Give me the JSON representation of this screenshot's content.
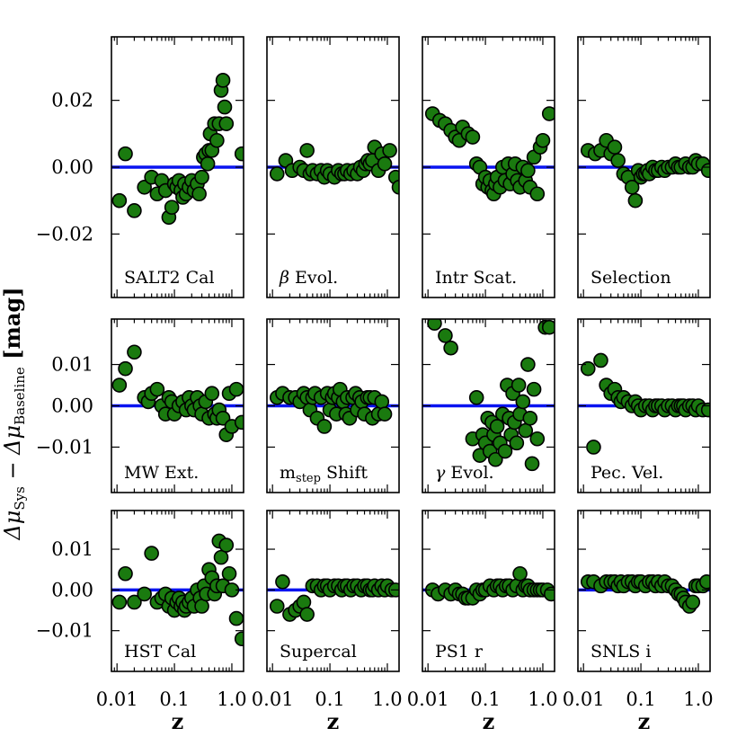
{
  "chart_data": {
    "type": "scatter",
    "ylabel": "Δμ_Sys − Δμ_Baseline [mag]",
    "ylabel_parts": {
      "base": "Δμ",
      "sub1": "Sys",
      "minus": " − Δμ",
      "sub2": "Baseline",
      "unit": " [mag]"
    },
    "xlabel": "z",
    "x_scale": "log",
    "xlim": [
      0.008,
      1.6
    ],
    "x_ticks": [
      {
        "value": 0.01,
        "label": "0.01"
      },
      {
        "value": 0.1,
        "label": "0.1"
      },
      {
        "value": 1.0,
        "label": "1.0"
      }
    ],
    "baseline_value": 0.0,
    "rows": [
      {
        "ylim": [
          -0.039,
          0.039
        ],
        "y_ticks": [
          {
            "value": 0.02,
            "label": "0.02"
          },
          {
            "value": 0.0,
            "label": "0.00"
          },
          {
            "value": -0.02,
            "label": "−0.02"
          }
        ]
      },
      {
        "ylim": [
          -0.021,
          0.021
        ],
        "y_ticks": [
          {
            "value": 0.01,
            "label": "0.01"
          },
          {
            "value": 0.0,
            "label": "0.00"
          },
          {
            "value": -0.01,
            "label": "−0.01"
          }
        ]
      },
      {
        "ylim": [
          -0.02,
          0.0195
        ],
        "y_ticks": [
          {
            "value": 0.01,
            "label": "0.01"
          },
          {
            "value": 0.0,
            "label": "0.00"
          },
          {
            "value": -0.01,
            "label": "−0.01"
          }
        ]
      }
    ],
    "panels": [
      {
        "name": "SALT2 Cal",
        "label": "SALT2 Cal",
        "label_prefix": "",
        "label_sub": "",
        "label_suffix": "",
        "row": 0,
        "col": 0,
        "x": [
          0.011,
          0.014,
          0.02,
          0.03,
          0.04,
          0.05,
          0.06,
          0.07,
          0.08,
          0.09,
          0.1,
          0.11,
          0.12,
          0.13,
          0.14,
          0.15,
          0.16,
          0.18,
          0.2,
          0.22,
          0.25,
          0.27,
          0.3,
          0.32,
          0.35,
          0.38,
          0.4,
          0.42,
          0.45,
          0.5,
          0.55,
          0.6,
          0.65,
          0.7,
          0.75,
          0.8,
          1.5
        ],
        "y": [
          -0.01,
          0.004,
          -0.013,
          -0.006,
          -0.003,
          -0.008,
          -0.004,
          -0.007,
          -0.015,
          -0.012,
          -0.005,
          -0.006,
          -0.004,
          -0.007,
          -0.009,
          -0.005,
          -0.008,
          -0.006,
          -0.004,
          -0.007,
          -0.005,
          -0.008,
          -0.003,
          0.003,
          0.004,
          0.001,
          0.005,
          0.01,
          0.005,
          0.013,
          0.008,
          0.013,
          0.023,
          0.026,
          0.018,
          0.013,
          0.004
        ]
      },
      {
        "name": "beta Evol.",
        "label": "",
        "label_prefix": "β",
        "label_sub": "",
        "label_suffix": " Evol.",
        "row": 0,
        "col": 1,
        "x": [
          0.012,
          0.017,
          0.022,
          0.03,
          0.035,
          0.04,
          0.045,
          0.05,
          0.06,
          0.07,
          0.08,
          0.09,
          0.1,
          0.12,
          0.14,
          0.16,
          0.18,
          0.2,
          0.23,
          0.26,
          0.3,
          0.34,
          0.38,
          0.42,
          0.46,
          0.5,
          0.55,
          0.6,
          0.7,
          0.8,
          0.9,
          1.1,
          1.4,
          1.6
        ],
        "y": [
          -0.002,
          0.002,
          -0.001,
          0.0,
          -0.001,
          0.005,
          -0.002,
          -0.001,
          -0.002,
          -0.001,
          -0.003,
          -0.001,
          -0.002,
          -0.003,
          -0.001,
          -0.002,
          -0.002,
          -0.001,
          -0.002,
          -0.001,
          -0.002,
          0.0,
          -0.001,
          0.001,
          0.002,
          0.001,
          0.002,
          0.006,
          -0.001,
          0.004,
          0.001,
          0.005,
          -0.003,
          -0.006
        ]
      },
      {
        "name": "Intr Scat.",
        "label": "Intr Scat.",
        "label_prefix": "",
        "label_sub": "",
        "label_suffix": "",
        "row": 0,
        "col": 2,
        "x": [
          0.012,
          0.016,
          0.02,
          0.025,
          0.03,
          0.035,
          0.04,
          0.05,
          0.06,
          0.07,
          0.08,
          0.09,
          0.1,
          0.11,
          0.12,
          0.13,
          0.14,
          0.15,
          0.16,
          0.18,
          0.2,
          0.22,
          0.25,
          0.27,
          0.3,
          0.33,
          0.36,
          0.4,
          0.45,
          0.5,
          0.55,
          0.6,
          0.7,
          0.8,
          0.9,
          1.0,
          1.3
        ],
        "y": [
          0.016,
          0.014,
          0.013,
          0.011,
          0.009,
          0.008,
          0.012,
          0.01,
          0.009,
          0.001,
          0.0,
          -0.005,
          -0.003,
          -0.006,
          -0.004,
          -0.007,
          -0.008,
          -0.005,
          -0.003,
          -0.006,
          0.0,
          -0.004,
          0.001,
          -0.005,
          -0.002,
          0.001,
          -0.004,
          -0.006,
          0.0,
          -0.004,
          -0.001,
          -0.006,
          0.003,
          -0.008,
          0.006,
          0.008,
          0.016
        ]
      },
      {
        "name": "Selection",
        "label": "Selection",
        "label_prefix": "",
        "label_sub": "",
        "label_suffix": "",
        "row": 0,
        "col": 3,
        "x": [
          0.012,
          0.016,
          0.02,
          0.025,
          0.03,
          0.035,
          0.04,
          0.05,
          0.06,
          0.07,
          0.08,
          0.09,
          0.1,
          0.11,
          0.12,
          0.13,
          0.14,
          0.16,
          0.18,
          0.2,
          0.23,
          0.26,
          0.3,
          0.35,
          0.4,
          0.45,
          0.5,
          0.6,
          0.7,
          0.8,
          0.9,
          1.0,
          1.2,
          1.5
        ],
        "y": [
          0.005,
          0.004,
          0.005,
          0.008,
          0.004,
          0.006,
          0.002,
          -0.002,
          -0.003,
          -0.006,
          -0.01,
          -0.001,
          -0.003,
          -0.002,
          -0.002,
          -0.001,
          -0.002,
          0.0,
          -0.001,
          -0.001,
          0.0,
          -0.001,
          0.0,
          0.0,
          0.001,
          0.0,
          0.0,
          0.001,
          0.0,
          0.0,
          0.002,
          0.001,
          0.001,
          -0.001
        ]
      },
      {
        "name": "MW Ext.",
        "label": "MW Ext.",
        "label_prefix": "",
        "label_sub": "",
        "label_suffix": "",
        "row": 1,
        "col": 0,
        "x": [
          0.011,
          0.014,
          0.02,
          0.03,
          0.035,
          0.04,
          0.05,
          0.06,
          0.07,
          0.08,
          0.09,
          0.1,
          0.12,
          0.14,
          0.16,
          0.18,
          0.2,
          0.22,
          0.25,
          0.28,
          0.3,
          0.35,
          0.4,
          0.45,
          0.5,
          0.55,
          0.6,
          0.7,
          0.8,
          0.9,
          1.0,
          1.2,
          1.5
        ],
        "y": [
          0.005,
          0.009,
          0.013,
          0.002,
          0.001,
          0.003,
          0.004,
          0.0,
          -0.002,
          0.002,
          0.001,
          -0.002,
          0.0,
          0.001,
          -0.001,
          0.002,
          0.0,
          -0.001,
          0.002,
          0.0,
          -0.002,
          0.001,
          -0.003,
          0.003,
          -0.002,
          -0.003,
          -0.001,
          -0.003,
          -0.007,
          0.003,
          -0.005,
          0.004,
          -0.004
        ]
      },
      {
        "name": "m_step Shift",
        "label": "",
        "label_prefix": "m",
        "label_sub": "step",
        "label_suffix": " Shift",
        "row": 1,
        "col": 1,
        "x": [
          0.012,
          0.015,
          0.02,
          0.025,
          0.03,
          0.035,
          0.04,
          0.045,
          0.05,
          0.055,
          0.06,
          0.07,
          0.08,
          0.09,
          0.1,
          0.11,
          0.12,
          0.13,
          0.14,
          0.15,
          0.17,
          0.19,
          0.2,
          0.22,
          0.25,
          0.28,
          0.3,
          0.33,
          0.36,
          0.4,
          0.45,
          0.5,
          0.55,
          0.6,
          0.7,
          0.8,
          0.9
        ],
        "y": [
          0.002,
          0.003,
          0.002,
          0.002,
          0.001,
          0.003,
          0.002,
          -0.001,
          0.002,
          0.003,
          -0.003,
          0.002,
          -0.005,
          0.003,
          -0.001,
          0.002,
          0.003,
          -0.002,
          0.002,
          0.004,
          0.001,
          -0.002,
          0.002,
          -0.003,
          0.002,
          0.003,
          -0.001,
          0.002,
          0.001,
          -0.002,
          0.002,
          0.002,
          -0.003,
          0.002,
          -0.002,
          0.001,
          -0.002
        ]
      },
      {
        "name": "gamma Evol.",
        "label": "",
        "label_prefix": "γ",
        "label_sub": "",
        "label_suffix": " Evol.",
        "row": 1,
        "col": 2,
        "x": [
          0.013,
          0.02,
          0.025,
          0.06,
          0.07,
          0.08,
          0.09,
          0.1,
          0.11,
          0.12,
          0.13,
          0.14,
          0.15,
          0.16,
          0.18,
          0.2,
          0.22,
          0.24,
          0.26,
          0.28,
          0.3,
          0.32,
          0.35,
          0.38,
          0.4,
          0.45,
          0.5,
          0.55,
          0.6,
          0.65,
          0.7,
          0.8,
          1.1,
          1.3
        ],
        "y": [
          0.02,
          0.017,
          0.014,
          -0.008,
          0.002,
          -0.012,
          -0.007,
          -0.009,
          -0.003,
          -0.011,
          -0.004,
          -0.007,
          -0.013,
          -0.005,
          -0.009,
          -0.002,
          -0.011,
          0.005,
          -0.003,
          -0.007,
          0.003,
          -0.004,
          -0.009,
          0.005,
          -0.002,
          0.001,
          -0.006,
          0.01,
          -0.003,
          -0.014,
          0.004,
          -0.008,
          0.019,
          0.019
        ]
      },
      {
        "name": "Pec. Vel.",
        "label": "Pec. Vel.",
        "label_prefix": "",
        "label_sub": "",
        "label_suffix": "",
        "row": 1,
        "col": 3,
        "x": [
          0.012,
          0.015,
          0.02,
          0.025,
          0.03,
          0.035,
          0.04,
          0.045,
          0.05,
          0.06,
          0.07,
          0.08,
          0.09,
          0.1,
          0.12,
          0.14,
          0.16,
          0.18,
          0.2,
          0.23,
          0.26,
          0.3,
          0.35,
          0.4,
          0.45,
          0.5,
          0.55,
          0.6,
          0.7,
          0.8,
          0.9,
          1.0,
          1.2,
          1.5
        ],
        "y": [
          0.009,
          -0.01,
          0.011,
          0.005,
          0.003,
          0.004,
          0.002,
          0.001,
          0.002,
          0.001,
          0.0,
          0.001,
          0.0,
          -0.001,
          0.0,
          0.0,
          -0.001,
          0.0,
          0.0,
          0.0,
          -0.001,
          0.0,
          0.0,
          -0.001,
          0.0,
          0.0,
          0.0,
          -0.001,
          0.0,
          0.0,
          -0.001,
          0.0,
          -0.001,
          -0.001
        ]
      },
      {
        "name": "HST Cal",
        "label": "HST Cal",
        "label_prefix": "",
        "label_sub": "",
        "label_suffix": "",
        "row": 2,
        "col": 0,
        "x": [
          0.011,
          0.014,
          0.02,
          0.03,
          0.04,
          0.05,
          0.06,
          0.07,
          0.08,
          0.09,
          0.1,
          0.11,
          0.12,
          0.13,
          0.14,
          0.15,
          0.16,
          0.18,
          0.2,
          0.22,
          0.25,
          0.28,
          0.3,
          0.33,
          0.36,
          0.4,
          0.45,
          0.5,
          0.55,
          0.6,
          0.65,
          0.7,
          0.8,
          0.9,
          1.0,
          1.2,
          1.5
        ],
        "y": [
          -0.003,
          0.004,
          -0.003,
          -0.001,
          0.009,
          -0.003,
          -0.002,
          -0.001,
          -0.004,
          -0.002,
          -0.005,
          -0.003,
          -0.002,
          -0.004,
          -0.003,
          -0.005,
          -0.004,
          -0.003,
          -0.002,
          -0.004,
          0.0,
          -0.002,
          -0.004,
          0.001,
          -0.001,
          0.005,
          0.003,
          -0.001,
          0.001,
          0.012,
          0.008,
          0.001,
          0.011,
          0.004,
          0.0,
          -0.007,
          -0.012
        ]
      },
      {
        "name": "Supercal",
        "label": "Supercal",
        "label_prefix": "",
        "label_sub": "",
        "label_suffix": "",
        "row": 2,
        "col": 1,
        "x": [
          0.012,
          0.015,
          0.02,
          0.025,
          0.03,
          0.035,
          0.04,
          0.05,
          0.06,
          0.07,
          0.08,
          0.09,
          0.1,
          0.12,
          0.14,
          0.16,
          0.18,
          0.2,
          0.23,
          0.26,
          0.3,
          0.35,
          0.4,
          0.45,
          0.5,
          0.55,
          0.6,
          0.7,
          0.8,
          0.9,
          1.0,
          1.2,
          1.4
        ],
        "y": [
          -0.004,
          0.002,
          -0.006,
          -0.005,
          -0.004,
          -0.003,
          -0.006,
          0.001,
          0.001,
          0.0,
          0.001,
          0.001,
          0.0,
          0.001,
          0.001,
          0.0,
          0.001,
          0.001,
          0.0,
          0.001,
          0.001,
          0.0,
          0.001,
          0.001,
          0.0,
          0.0,
          0.001,
          0.0,
          0.001,
          0.0,
          0.001,
          0.0,
          0.0
        ]
      },
      {
        "name": "PS1 r",
        "label": "PS1 r",
        "label_prefix": "",
        "label_sub": "",
        "label_suffix": "",
        "row": 2,
        "col": 2,
        "x": [
          0.012,
          0.015,
          0.02,
          0.025,
          0.03,
          0.035,
          0.04,
          0.045,
          0.05,
          0.06,
          0.07,
          0.08,
          0.09,
          0.1,
          0.12,
          0.14,
          0.16,
          0.18,
          0.2,
          0.23,
          0.26,
          0.3,
          0.35,
          0.4,
          0.45,
          0.5,
          0.55,
          0.6,
          0.7,
          0.8,
          0.9,
          1.0,
          1.2,
          1.4
        ],
        "y": [
          0.0,
          -0.001,
          0.0,
          -0.001,
          0.0,
          -0.001,
          -0.001,
          -0.002,
          -0.002,
          -0.002,
          0.0,
          -0.001,
          0.0,
          0.0,
          0.001,
          0.0,
          0.001,
          0.001,
          0.0,
          0.001,
          0.001,
          0.0,
          0.001,
          0.004,
          0.0,
          0.001,
          0.001,
          0.0,
          0.0,
          0.0,
          0.0,
          0.0,
          0.0,
          -0.001
        ]
      },
      {
        "name": "SNLS i",
        "label": "SNLS i",
        "label_prefix": "",
        "label_sub": "",
        "label_suffix": "",
        "row": 2,
        "col": 3,
        "x": [
          0.012,
          0.015,
          0.02,
          0.025,
          0.03,
          0.035,
          0.04,
          0.045,
          0.05,
          0.06,
          0.07,
          0.08,
          0.09,
          0.1,
          0.12,
          0.14,
          0.16,
          0.18,
          0.2,
          0.23,
          0.26,
          0.3,
          0.35,
          0.4,
          0.45,
          0.5,
          0.55,
          0.6,
          0.7,
          0.8,
          0.9,
          1.0,
          1.2,
          1.4
        ],
        "y": [
          0.002,
          0.002,
          0.001,
          0.002,
          0.002,
          0.002,
          0.001,
          0.002,
          0.001,
          0.002,
          0.002,
          0.001,
          0.002,
          0.002,
          0.001,
          0.002,
          0.002,
          0.001,
          0.002,
          0.001,
          0.002,
          0.001,
          0.001,
          0.0,
          -0.001,
          -0.001,
          -0.002,
          -0.003,
          -0.004,
          -0.003,
          0.001,
          0.001,
          0.001,
          0.002
        ]
      }
    ]
  }
}
